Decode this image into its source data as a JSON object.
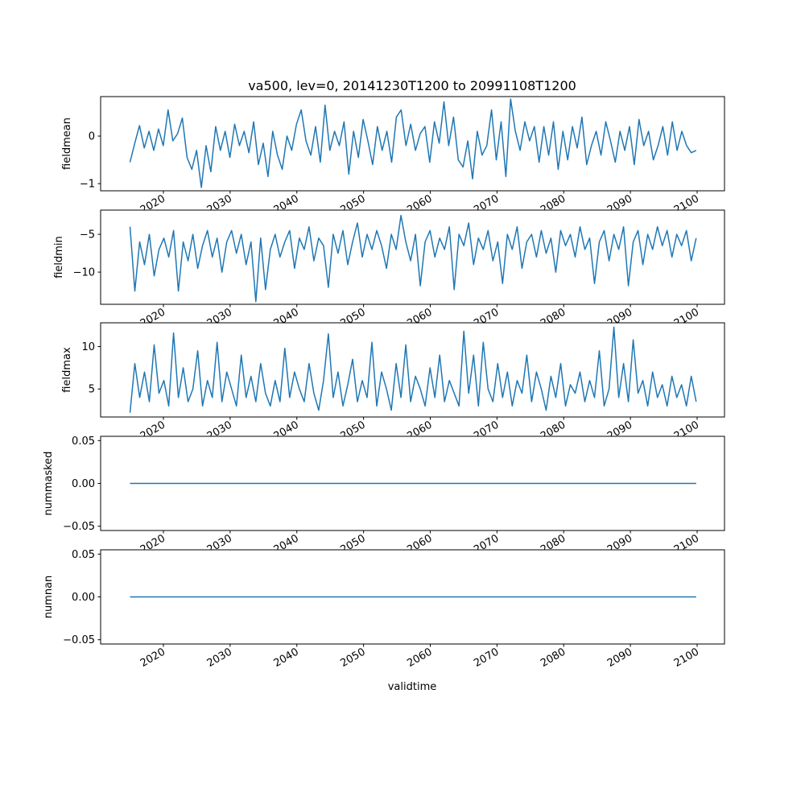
{
  "chart_data": {
    "type": "line",
    "title": "va500, lev=0, 20141230T1200 to 20991108T1200",
    "xlabel": "validtime",
    "xlim": [
      2009.6,
      2104.2
    ],
    "x_start": 2014.99,
    "x_end": 2099.85,
    "xticks": [
      2020,
      2030,
      2040,
      2050,
      2060,
      2070,
      2080,
      2090,
      2100
    ],
    "xtick_labels": [
      "2020",
      "2030",
      "2040",
      "2050",
      "2060",
      "2070",
      "2080",
      "2090",
      "2100"
    ],
    "color": "#1f77b4",
    "panels": [
      {
        "ylabel": "fieldmean",
        "ylim": [
          -1.15,
          0.83
        ],
        "yticks": [
          0,
          -1
        ],
        "ytick_labels": [
          "0",
          "−1"
        ],
        "values": [
          -0.55,
          -0.15,
          0.22,
          -0.25,
          0.1,
          -0.3,
          0.15,
          -0.2,
          0.55,
          -0.1,
          0.05,
          0.38,
          -0.45,
          -0.7,
          -0.3,
          -1.08,
          -0.2,
          -0.75,
          0.2,
          -0.3,
          0.1,
          -0.45,
          0.25,
          -0.2,
          0.1,
          -0.35,
          0.3,
          -0.6,
          -0.15,
          -0.85,
          0.1,
          -0.4,
          -0.7,
          0.0,
          -0.3,
          0.25,
          0.55,
          -0.1,
          -0.4,
          0.2,
          -0.55,
          0.65,
          -0.3,
          0.1,
          -0.2,
          0.3,
          -0.8,
          0.1,
          -0.45,
          0.35,
          -0.1,
          -0.6,
          0.2,
          -0.3,
          0.1,
          -0.55,
          0.4,
          0.55,
          -0.2,
          0.25,
          -0.3,
          0.05,
          0.2,
          -0.55,
          0.3,
          -0.15,
          0.72,
          -0.2,
          0.4,
          -0.5,
          -0.65,
          -0.1,
          -0.9,
          0.1,
          -0.4,
          -0.2,
          0.55,
          -0.5,
          0.3,
          -0.85,
          0.78,
          0.1,
          -0.3,
          0.3,
          -0.1,
          0.2,
          -0.55,
          0.2,
          -0.4,
          0.3,
          -0.7,
          0.1,
          -0.5,
          0.2,
          -0.25,
          0.4,
          -0.6,
          -0.2,
          0.1,
          -0.4,
          0.3,
          -0.1,
          -0.55,
          0.1,
          -0.3,
          0.2,
          -0.6,
          0.35,
          -0.2,
          0.1,
          -0.5,
          -0.2,
          0.2,
          -0.4,
          0.3,
          -0.3,
          0.1,
          -0.2,
          -0.35,
          -0.3
        ]
      },
      {
        "ylabel": "fieldmin",
        "ylim": [
          -14.25,
          -1.8
        ],
        "yticks": [
          -5,
          -10
        ],
        "ytick_labels": [
          "−5",
          "−10"
        ],
        "values": [
          -4,
          -12.5,
          -6,
          -9,
          -5,
          -10.5,
          -7,
          -5.5,
          -8,
          -4.5,
          -12.5,
          -6,
          -8.5,
          -5,
          -9.5,
          -6.5,
          -4.5,
          -8,
          -5.5,
          -10,
          -6,
          -4.5,
          -7.5,
          -5,
          -9,
          -6,
          -13.9,
          -5.5,
          -12.3,
          -7,
          -5,
          -8,
          -6,
          -4.5,
          -9.5,
          -5.5,
          -7,
          -4,
          -8.5,
          -5.5,
          -6.5,
          -12,
          -5,
          -7.5,
          -4.5,
          -9,
          -6,
          -3.5,
          -8,
          -5,
          -7,
          -4.5,
          -6.5,
          -9.5,
          -5,
          -7,
          -2.5,
          -6,
          -8.5,
          -5,
          -11.8,
          -6,
          -4.5,
          -8,
          -5.5,
          -7,
          -4,
          -12.3,
          -5,
          -6.5,
          -3.5,
          -9,
          -5.5,
          -7,
          -4.5,
          -8.5,
          -6,
          -11.5,
          -5,
          -7,
          -4,
          -9.5,
          -6,
          -5,
          -8,
          -4.5,
          -7.5,
          -5.5,
          -10,
          -4.5,
          -6.5,
          -5,
          -8,
          -4,
          -7,
          -5.5,
          -11.5,
          -6,
          -4.5,
          -8.5,
          -5,
          -7,
          -4,
          -11.8,
          -6,
          -4.5,
          -9,
          -5,
          -7,
          -4,
          -6.5,
          -4.5,
          -8,
          -5,
          -6.5,
          -4.5,
          -8.5,
          -5.5
        ]
      },
      {
        "ylabel": "fieldmax",
        "ylim": [
          1.7,
          12.8
        ],
        "yticks": [
          10,
          5
        ],
        "ytick_labels": [
          "10",
          "5"
        ],
        "values": [
          2.2,
          8,
          4,
          7,
          3.5,
          10.2,
          4.5,
          6,
          3,
          11.6,
          4,
          7.5,
          3.5,
          5,
          9.5,
          3,
          6,
          4,
          10.5,
          3.5,
          7,
          5,
          3,
          9,
          4,
          6.5,
          3.5,
          8,
          4.5,
          3,
          6,
          3.5,
          9.8,
          4,
          7,
          5,
          3.5,
          8,
          4.5,
          2.5,
          6,
          11.5,
          4,
          7,
          3,
          5.5,
          8.5,
          3.5,
          6,
          4,
          10.5,
          3,
          7,
          5,
          2.5,
          8,
          4,
          10.2,
          3.5,
          6.5,
          5,
          3,
          7.5,
          4,
          9,
          3.5,
          6,
          4.5,
          3,
          11.8,
          4.5,
          9,
          3,
          10.5,
          5,
          3.5,
          8,
          4,
          7,
          3,
          6,
          4.5,
          9,
          3.5,
          7,
          5,
          2.5,
          6.5,
          4,
          8,
          3,
          5.5,
          4.5,
          7,
          3.5,
          6,
          4,
          9.5,
          3,
          5,
          12.3,
          4,
          8,
          3.5,
          10.8,
          4.5,
          6,
          3,
          7,
          4,
          5.5,
          3,
          6.5,
          4,
          5.5,
          3,
          6.5,
          3.5
        ]
      },
      {
        "ylabel": "nummasked",
        "ylim": [
          -0.055,
          0.055
        ],
        "yticks": [
          0.05,
          0.0,
          -0.05
        ],
        "ytick_labels": [
          "0.05",
          "0.00",
          "−0.05"
        ],
        "values": [
          0,
          0
        ]
      },
      {
        "ylabel": "numnan",
        "ylim": [
          -0.055,
          0.055
        ],
        "yticks": [
          0.05,
          0.0,
          -0.05
        ],
        "ytick_labels": [
          "0.05",
          "0.00",
          "−0.05"
        ],
        "values": [
          0,
          0
        ]
      }
    ]
  }
}
